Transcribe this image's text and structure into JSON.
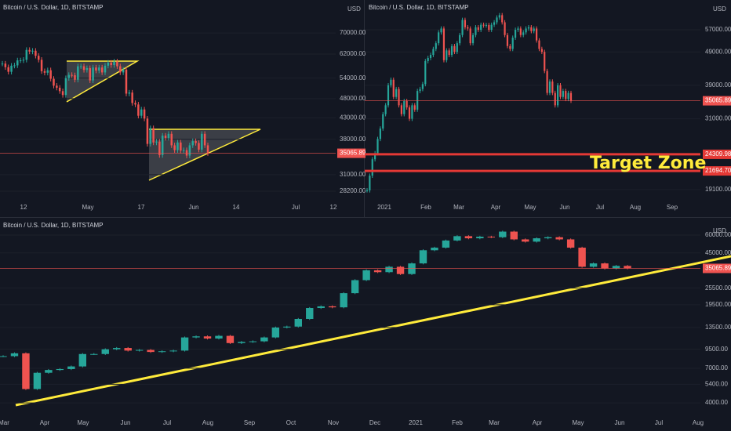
{
  "panels": [
    {
      "title": "Bitcoin / U.S. Dollar, 1D, BITSTAMP",
      "currency": "USD",
      "log": true,
      "ylim": [
        26830,
        84600
      ],
      "last_price": 35065.89,
      "price_ticks": [
        {
          "value": 70000,
          "label": "70000.00"
        },
        {
          "value": 62000,
          "label": "62000.00"
        },
        {
          "value": 54000,
          "label": "54000.00"
        },
        {
          "value": 48000,
          "label": "48000.00"
        },
        {
          "value": 43000,
          "label": "43000.00"
        },
        {
          "value": 38000,
          "label": "38000.00"
        },
        {
          "value": 31000,
          "label": "31000.00"
        },
        {
          "value": 28200,
          "label": "28200.00"
        }
      ],
      "time_labels": [
        "12",
        "May",
        "17",
        "Jun",
        "14",
        "Jul",
        "12"
      ],
      "closes": [
        58700,
        57500,
        56000,
        58000,
        58100,
        59800,
        59800,
        60000,
        63500,
        62900,
        63200,
        61400,
        60000,
        56200,
        55700,
        56500,
        53800,
        51700,
        51100,
        50100,
        49000,
        54000,
        55000,
        54900,
        53500,
        57800,
        57800,
        56600,
        57200,
        53300,
        57400,
        56400,
        57400,
        55800,
        58000,
        59000,
        58200,
        59400,
        57800,
        55800,
        56700,
        49400,
        49700,
        46800,
        46400,
        43500,
        45100,
        42800,
        37000,
        40500,
        37300,
        37500,
        34700,
        38800,
        38300,
        39200,
        36700,
        35700,
        37300,
        35600,
        35700,
        34600,
        36700,
        37600,
        37200,
        35800,
        39200,
        36700,
        35065.89
      ]
    },
    {
      "title": "Bitcoin / U.S. Dollar, 1D, BITSTAMP",
      "currency": "USD",
      "log": true,
      "ylim": [
        17800,
        69900
      ],
      "last_price": 35065.89,
      "price_ticks": [
        {
          "value": 57000,
          "label": "57000.00"
        },
        {
          "value": 49000,
          "label": "49000.00"
        },
        {
          "value": 39000,
          "label": "39000.00"
        },
        {
          "value": 31000,
          "label": "31000.00"
        },
        {
          "value": 19100,
          "label": "19100.00"
        }
      ],
      "levels": [
        {
          "value": 24309.98,
          "label": "24309.98"
        },
        {
          "value": 21694.7,
          "label": "21694.70"
        }
      ],
      "annotation": "Target Zone",
      "time_labels": [
        "2021",
        "Feb",
        "Mar",
        "Apr",
        "May",
        "Jun",
        "Jul",
        "Aug",
        "Sep"
      ],
      "closes": [
        19000,
        21000,
        23500,
        24500,
        27000,
        29000,
        32000,
        34000,
        39000,
        40500,
        36000,
        38000,
        34000,
        32000,
        35000,
        33500,
        31000,
        34000,
        33000,
        37500,
        38000,
        39300,
        46000,
        47000,
        48000,
        50000,
        52000,
        56000,
        57500,
        46300,
        49500,
        48000,
        51000,
        49000,
        52000,
        55000,
        61000,
        58000,
        57500,
        52000,
        55000,
        58000,
        57000,
        59000,
        58700,
        58900,
        57000,
        59000,
        60000,
        62000,
        63000,
        60000,
        55000,
        51000,
        50000,
        54000,
        57000,
        57500,
        55000,
        56000,
        57500,
        58000,
        56500,
        57500,
        53000,
        50000,
        49000,
        43000,
        37000,
        40000,
        37000,
        34000,
        39000,
        36000,
        37500,
        35500,
        37000,
        35065.89
      ]
    },
    {
      "title": "Bitcoin / U.S. Dollar, 1D, BITSTAMP",
      "currency": "USD",
      "log": true,
      "ylim": [
        3270,
        77300
      ],
      "last_price": 35065.89,
      "price_ticks": [
        {
          "value": 60000,
          "label": "60000.00"
        },
        {
          "value": 45000,
          "label": "45000.00"
        },
        {
          "value": 25500,
          "label": "25500.00"
        },
        {
          "value": 19500,
          "label": "19500.00"
        },
        {
          "value": 13500,
          "label": "13500.00"
        },
        {
          "value": 9500,
          "label": "9500.00"
        },
        {
          "value": 7000,
          "label": "7000.00"
        },
        {
          "value": 5400,
          "label": "5400.00"
        },
        {
          "value": 4000,
          "label": "4000.00"
        }
      ],
      "time_labels": [
        "Mar",
        "Apr",
        "May",
        "Jun",
        "Jul",
        "Aug",
        "Sep",
        "Oct",
        "Nov",
        "Dec",
        "2021",
        "Feb",
        "Mar",
        "Apr",
        "May",
        "Jun",
        "Jul",
        "Aug"
      ],
      "closes": [
        8500,
        8900,
        5000,
        6500,
        6800,
        6900,
        7200,
        8800,
        8800,
        9500,
        9700,
        9300,
        9400,
        9100,
        9200,
        9300,
        11500,
        11700,
        11300,
        11800,
        10500,
        10700,
        10800,
        11500,
        13500,
        13700,
        15500,
        18500,
        19000,
        18700,
        23500,
        29000,
        34000,
        33000,
        36000,
        32000,
        38000,
        47000,
        49000,
        55000,
        59000,
        57000,
        58500,
        58000,
        63500,
        56000,
        54000,
        57000,
        58000,
        56000,
        49000,
        36000,
        38000,
        35000,
        36500,
        35065.89
      ]
    }
  ]
}
